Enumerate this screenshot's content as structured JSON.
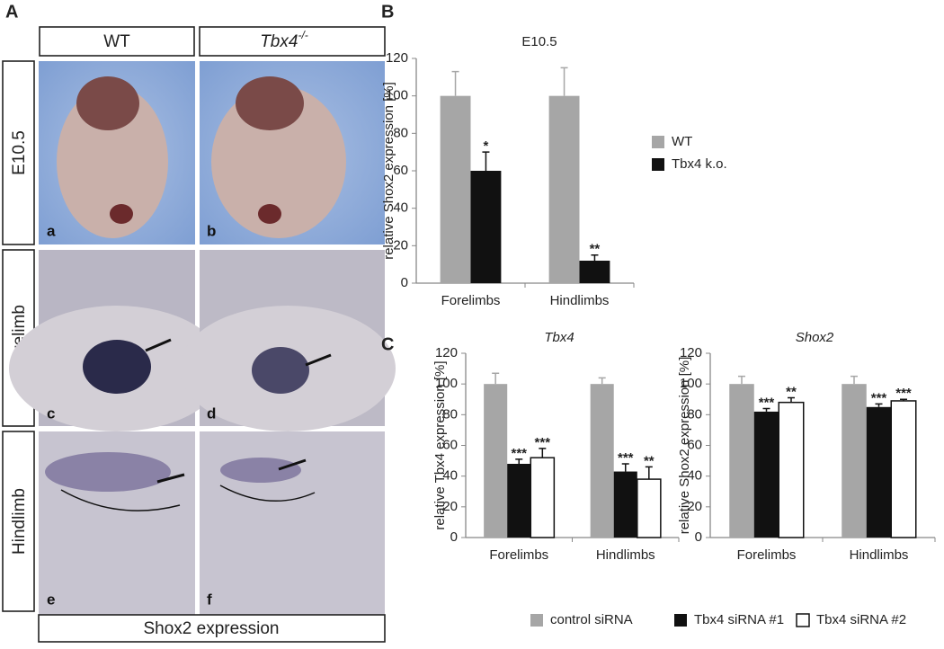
{
  "panel_letters": [
    "A",
    "B",
    "C"
  ],
  "panel_a": {
    "columns": [
      {
        "text": "WT"
      },
      {
        "text": "Tbx4",
        "sup": "-/-"
      }
    ],
    "rows": [
      "E10.5",
      "Forelimb",
      "Hindlimb"
    ],
    "image_labels": [
      "a",
      "b",
      "c",
      "d",
      "e",
      "f"
    ],
    "footer": "Shox2 expression"
  },
  "chart_data": [
    {
      "type": "bar",
      "title": "E10.5",
      "y_label": "relative Shox2 expression [%]",
      "categories": [
        "Forelimbs",
        "Hindlimbs"
      ],
      "series": [
        {
          "name": "WT",
          "color": "#a6a6a6",
          "values": [
            100,
            100
          ],
          "errors": [
            13,
            15
          ]
        },
        {
          "name": "Tbx4 k.o.",
          "color": "#111111",
          "values": [
            60,
            12
          ],
          "errors": [
            10,
            3
          ],
          "significance": [
            "*",
            "**"
          ]
        }
      ],
      "ylim": [
        0,
        120
      ],
      "yticks": [
        0,
        20,
        40,
        60,
        80,
        100,
        120
      ],
      "legend": "right"
    },
    {
      "type": "bar",
      "title": "Tbx4",
      "y_label": "relative Tbx4 expression [%]",
      "categories": [
        "Forelimbs",
        "Hindlimbs"
      ],
      "series": [
        {
          "name": "control siRNA",
          "color": "#a6a6a6",
          "values": [
            100,
            100
          ],
          "errors": [
            7,
            4
          ]
        },
        {
          "name": "Tbx4 siRNA #1",
          "color": "#111111",
          "values": [
            48,
            43
          ],
          "errors": [
            3,
            5
          ],
          "significance": [
            "***",
            "***"
          ]
        },
        {
          "name": "Tbx4 siRNA #2",
          "color": "#ffffff",
          "values": [
            52,
            38
          ],
          "errors": [
            6,
            8
          ],
          "significance": [
            "***",
            "**"
          ]
        }
      ],
      "ylim": [
        0,
        120
      ],
      "yticks": [
        0,
        20,
        40,
        60,
        80,
        100,
        120
      ],
      "legend": "bottom"
    },
    {
      "type": "bar",
      "title": "Shox2",
      "y_label": "relative Shox2 expression [%]",
      "categories": [
        "Forelimbs",
        "Hindlimbs"
      ],
      "series": [
        {
          "color": "#a6a6a6",
          "values": [
            100,
            100
          ],
          "errors": [
            5,
            5
          ]
        },
        {
          "color": "#111111",
          "values": [
            82,
            85
          ],
          "errors": [
            2,
            2
          ],
          "significance": [
            "***",
            "***"
          ]
        },
        {
          "color": "#ffffff",
          "values": [
            88,
            89
          ],
          "errors": [
            3,
            1
          ],
          "significance": [
            "**",
            "***"
          ]
        }
      ],
      "ylim": [
        0,
        120
      ],
      "yticks": [
        0,
        20,
        40,
        60,
        80,
        100,
        120
      ]
    }
  ]
}
